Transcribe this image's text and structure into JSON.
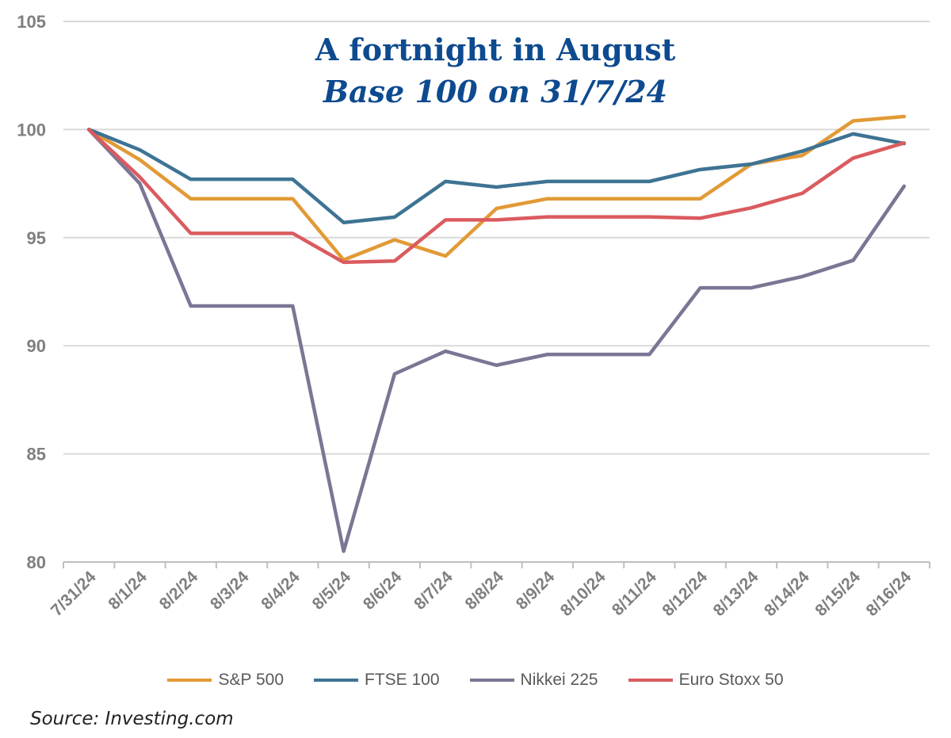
{
  "chart_data": {
    "type": "line",
    "title": "A fortnight in August",
    "subtitle": "Base 100 on 31/7/24",
    "xlabel": "",
    "ylabel": "",
    "ylim": [
      80,
      105
    ],
    "yticks": [
      "80",
      "85",
      "90",
      "95",
      "100",
      "105"
    ],
    "grid": true,
    "legend": "bottom",
    "categories": [
      "7/31/24",
      "8/1/24",
      "8/2/24",
      "8/3/24",
      "8/4/24",
      "8/5/24",
      "8/6/24",
      "8/7/24",
      "8/8/24",
      "8/9/24",
      "8/10/24",
      "8/11/24",
      "8/12/24",
      "8/13/24",
      "8/14/24",
      "8/15/24",
      "8/16/24"
    ],
    "series": [
      {
        "name": "S&P 500",
        "color": "#E29A36",
        "values": [
          100,
          98.6,
          96.8,
          96.8,
          96.8,
          93.97,
          94.9,
          94.15,
          96.35,
          96.8,
          96.8,
          96.8,
          96.8,
          98.4,
          98.8,
          100.4,
          100.6
        ]
      },
      {
        "name": "FTSE 100",
        "color": "#3E7393",
        "values": [
          100,
          99.06,
          97.7,
          97.7,
          97.7,
          95.7,
          95.95,
          97.6,
          97.34,
          97.6,
          97.6,
          97.6,
          98.15,
          98.4,
          99.0,
          99.8,
          99.35
        ]
      },
      {
        "name": "Nikkei 225",
        "color": "#7C7594",
        "values": [
          100,
          97.5,
          91.84,
          91.84,
          91.84,
          80.5,
          88.7,
          89.75,
          89.1,
          89.6,
          89.6,
          89.6,
          92.68,
          92.68,
          93.2,
          93.95,
          97.38
        ]
      },
      {
        "name": "Euro Stoxx 50",
        "color": "#DA5B5F",
        "values": [
          100,
          97.8,
          95.2,
          95.2,
          95.2,
          93.86,
          93.92,
          95.82,
          95.82,
          95.96,
          95.96,
          95.96,
          95.9,
          96.38,
          97.05,
          98.68,
          99.38
        ]
      }
    ]
  },
  "source": "Source: Investing.com"
}
